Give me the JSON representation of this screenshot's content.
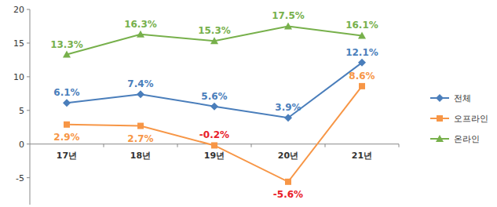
{
  "chart_data": {
    "type": "line",
    "categories": [
      "17년",
      "18년",
      "19년",
      "20년",
      "21년"
    ],
    "series": [
      {
        "name": "전체",
        "color": "#4a7ebb",
        "marker": "diamond",
        "values": [
          6.1,
          7.4,
          5.6,
          3.9,
          12.1
        ],
        "value_labels": [
          "6.1%",
          "7.4%",
          "5.6%",
          "3.9%",
          "12.1%"
        ]
      },
      {
        "name": "오프라인",
        "color": "#f79646",
        "marker": "square",
        "values": [
          2.9,
          2.7,
          -0.2,
          -5.6,
          8.6
        ],
        "value_labels": [
          "2.9%",
          "2.7%",
          "-0.2%",
          "-5.6%",
          "8.6%"
        ]
      },
      {
        "name": "온라인",
        "color": "#77b04b",
        "marker": "triangle",
        "values": [
          13.3,
          16.3,
          15.3,
          17.5,
          16.1
        ],
        "value_labels": [
          "13.3%",
          "16.3%",
          "15.3%",
          "17.5%",
          "16.1%"
        ]
      }
    ],
    "ylim": [
      -9,
      20
    ],
    "yticks": [
      -5,
      0,
      5,
      10,
      15,
      20
    ],
    "grid": false,
    "legend": "right",
    "data_labels": true
  }
}
